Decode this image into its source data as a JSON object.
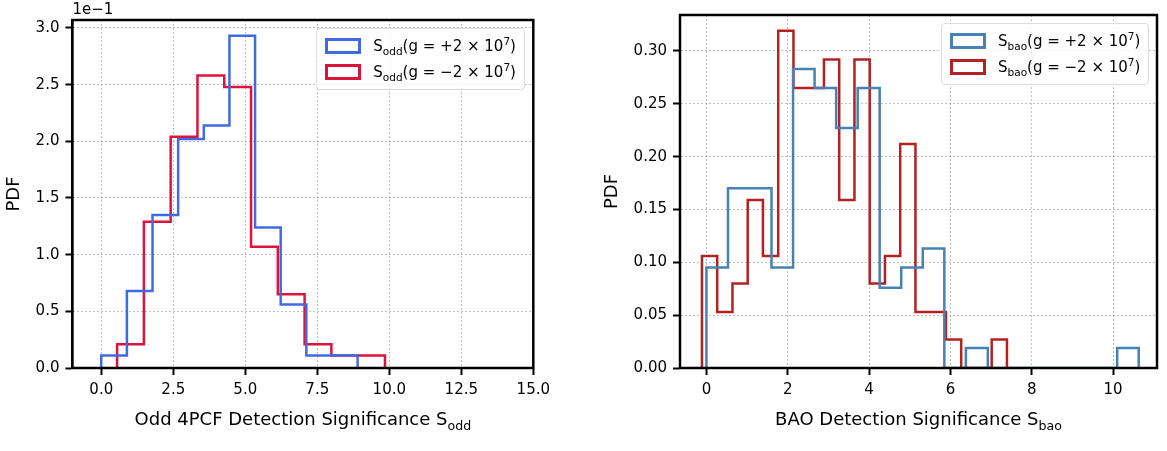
{
  "chart_data": [
    {
      "type": "histogram",
      "xlabel": "Odd 4PCF Detection Significance S$_{odd}$",
      "ylabel": "PDF",
      "annotations": [
        "1e−1"
      ],
      "xlim": [
        -1,
        15
      ],
      "ylim": [
        0,
        3.07
      ],
      "xticks": [
        {
          "value": 0,
          "label": "0.0"
        },
        {
          "value": 2.5,
          "label": "2.5"
        },
        {
          "value": 5,
          "label": "5.0"
        },
        {
          "value": 7.5,
          "label": "7.5"
        },
        {
          "value": 10,
          "label": "10.0"
        },
        {
          "value": 12.5,
          "label": "12.5"
        },
        {
          "value": 15,
          "label": "15.0"
        }
      ],
      "yticks": [
        {
          "value": 0,
          "label": "0.0"
        },
        {
          "value": 0.5,
          "label": "0.5"
        },
        {
          "value": 1,
          "label": "1.0"
        },
        {
          "value": 1.5,
          "label": "1.5"
        },
        {
          "value": 2,
          "label": "2.0"
        },
        {
          "value": 2.5,
          "label": "2.5"
        },
        {
          "value": 3,
          "label": "3.0"
        }
      ],
      "grid": true,
      "legend": "top right",
      "bins": [
        0,
        0.89,
        1.78,
        2.67,
        3.56,
        4.45,
        5.34,
        6.23,
        7.12,
        8.01,
        8.9
      ],
      "series": [
        {
          "name": "S$_{odd}$(g = +2 × 10$^{7}$)",
          "color": "#4169e1",
          "values": [
            0.11,
            0.68,
            1.35,
            2.02,
            2.14,
            2.93,
            1.24,
            0.56,
            0.11,
            0.11
          ]
        },
        {
          "name": "S$_{odd}$(g = −2 × 10$^{7}$)",
          "color": "#dc143c",
          "bins": [
            0.55,
            1.48,
            2.41,
            3.34,
            4.27,
            5.2,
            6.13,
            7.06,
            7.99,
            8.92,
            9.85
          ],
          "values": [
            0.21,
            1.29,
            2.04,
            2.58,
            2.48,
            1.07,
            0.65,
            0.21,
            0.11,
            0.11
          ]
        }
      ]
    },
    {
      "type": "histogram",
      "xlabel": "BAO Detection Significance S$_{bao}$",
      "ylabel": "PDF",
      "xlim": [
        -0.65,
        11.08
      ],
      "ylim": [
        0,
        0.334
      ],
      "xticks": [
        0,
        2,
        4,
        6,
        8,
        10
      ],
      "yticks": [
        {
          "value": 0,
          "label": "0.00"
        },
        {
          "value": 0.05,
          "label": "0.05"
        },
        {
          "value": 0.1,
          "label": "0.10"
        },
        {
          "value": 0.15,
          "label": "0.15"
        },
        {
          "value": 0.2,
          "label": "0.20"
        },
        {
          "value": 0.25,
          "label": "0.25"
        },
        {
          "value": 0.3,
          "label": "0.30"
        }
      ],
      "grid": true,
      "legend": "top right",
      "bins": [
        0,
        0.53,
        1.06,
        1.6,
        2.13,
        2.66,
        3.19,
        3.72,
        4.26,
        4.79,
        5.32,
        5.85,
        6.38,
        6.92,
        7.45,
        7.98,
        8.51,
        9.04,
        9.57,
        10.1,
        10.63
      ],
      "series": [
        {
          "name": "S$_{bao}$(g = +2 × 10$^{7}$)",
          "color": "#4682b4",
          "values": [
            0.095,
            0.17,
            0.17,
            0.095,
            0.283,
            0.265,
            0.227,
            0.265,
            0.076,
            0.095,
            0.113,
            0,
            0.019,
            0,
            0,
            0,
            0,
            0,
            0,
            0.019
          ]
        },
        {
          "name": "S$_{bao}$(g = −2 × 10$^{7}$)",
          "color": "#b22222",
          "bins": [
            -0.11,
            0.265,
            0.64,
            1.015,
            1.39,
            1.765,
            2.14,
            2.515,
            2.89,
            3.265,
            3.64,
            4.015,
            4.39,
            4.765,
            5.14,
            5.515,
            5.89,
            6.265,
            6.64,
            7.015,
            7.39
          ],
          "values": [
            0.106,
            0.053,
            0.08,
            0.159,
            0.106,
            0.319,
            0.265,
            0.265,
            0.292,
            0.159,
            0.292,
            0.08,
            0.106,
            0.212,
            0.053,
            0.053,
            0.027,
            0,
            0,
            0.027
          ]
        }
      ]
    }
  ]
}
